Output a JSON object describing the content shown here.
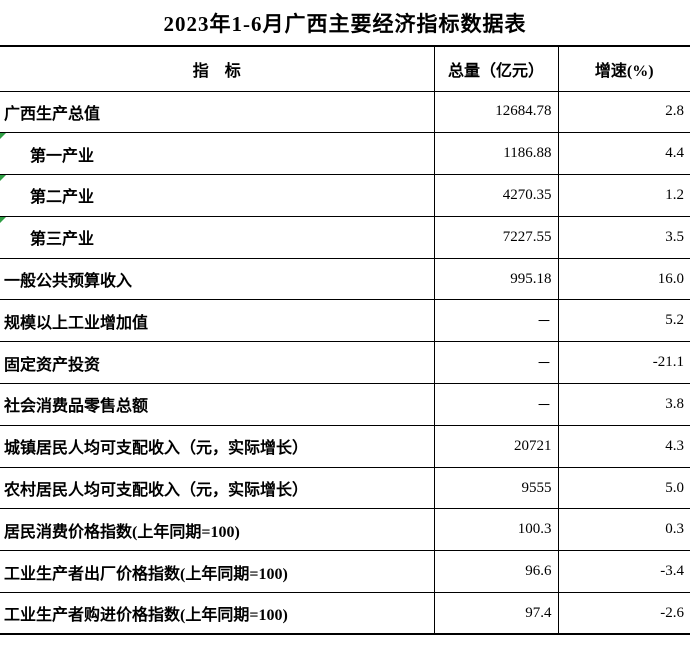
{
  "title": "2023年1-6月广西主要经济指标数据表",
  "colors": {
    "border": "#000000",
    "text": "#000000",
    "flag_triangle": "#2f9e44",
    "background": "#ffffff"
  },
  "table": {
    "headers": {
      "indicator": "指　标",
      "total": "总量（亿元）",
      "growth": "增速(%)"
    },
    "placeholder_dash": "－",
    "rows": [
      {
        "indicator": "广西生产总值",
        "total": "12684.78",
        "growth": "2.8",
        "indent": false,
        "flag": false
      },
      {
        "indicator": "第一产业",
        "total": "1186.88",
        "growth": "4.4",
        "indent": true,
        "flag": true
      },
      {
        "indicator": "第二产业",
        "total": "4270.35",
        "growth": "1.2",
        "indent": true,
        "flag": true
      },
      {
        "indicator": "第三产业",
        "total": "7227.55",
        "growth": "3.5",
        "indent": true,
        "flag": true
      },
      {
        "indicator": "一般公共预算收入",
        "total": "995.18",
        "growth": "16.0",
        "indent": false,
        "flag": false
      },
      {
        "indicator": "规模以上工业增加值",
        "total": "－",
        "growth": "5.2",
        "indent": false,
        "flag": false
      },
      {
        "indicator": "固定资产投资",
        "total": "－",
        "growth": "-21.1",
        "indent": false,
        "flag": false
      },
      {
        "indicator": "社会消费品零售总额",
        "total": "－",
        "growth": "3.8",
        "indent": false,
        "flag": false
      },
      {
        "indicator": "城镇居民人均可支配收入（元，实际增长）",
        "total": "20721",
        "growth": "4.3",
        "indent": false,
        "flag": false
      },
      {
        "indicator": "农村居民人均可支配收入（元，实际增长）",
        "total": "9555",
        "growth": "5.0",
        "indent": false,
        "flag": false
      },
      {
        "indicator": "居民消费价格指数(上年同期=100)",
        "total": "100.3",
        "growth": "0.3",
        "indent": false,
        "flag": false
      },
      {
        "indicator": "工业生产者出厂价格指数(上年同期=100)",
        "total": "96.6",
        "growth": "-3.4",
        "indent": false,
        "flag": false
      },
      {
        "indicator": "工业生产者购进价格指数(上年同期=100)",
        "total": "97.4",
        "growth": "-2.6",
        "indent": false,
        "flag": false
      }
    ]
  }
}
